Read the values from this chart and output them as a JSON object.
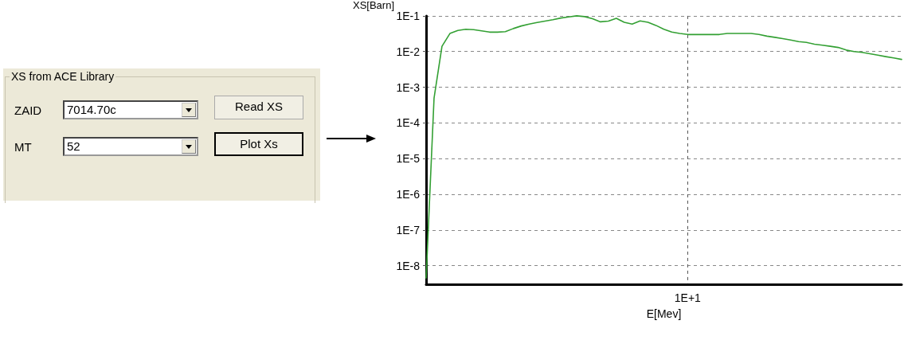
{
  "chart_data": [
    {
      "type": "other",
      "title": "XS from ACE Library",
      "annotations": [
        "ZAID",
        "7014.70c",
        "Read XS",
        "MT",
        "52",
        "Plot Xs"
      ]
    },
    {
      "type": "line",
      "xlabel": "E[Mev]",
      "ylabel": "XS[Barn]",
      "categories": [
        null,
        null,
        null,
        null,
        null,
        null,
        null,
        null,
        null,
        null,
        null,
        null,
        null,
        null,
        null,
        null,
        null,
        null,
        null,
        null,
        null,
        null,
        null,
        null,
        null,
        null,
        null,
        null,
        null,
        null,
        null,
        null,
        null,
        "1E+1",
        null,
        null,
        null,
        null,
        null,
        null,
        null,
        null,
        null,
        null,
        null,
        null,
        null,
        null,
        null,
        null,
        null,
        null,
        null,
        null,
        null,
        null,
        null,
        null,
        null,
        null,
        null
      ],
      "series": [
        {
          "color": "#33a033",
          "values": [
            4.5e-09,
            0.0005,
            0.014,
            0.032,
            0.039,
            0.042,
            0.041,
            0.038,
            0.035,
            0.035,
            0.036,
            0.044,
            0.052,
            0.059,
            0.065,
            0.071,
            0.078,
            0.087,
            0.093,
            0.1,
            0.095,
            0.083,
            0.068,
            0.071,
            0.085,
            0.066,
            0.059,
            0.072,
            0.066,
            0.054,
            0.042,
            0.035,
            0.032,
            0.03,
            0.03,
            0.03,
            0.03,
            0.03,
            0.032,
            0.032,
            0.032,
            0.032,
            0.03,
            0.027,
            0.025,
            0.023,
            0.021,
            0.019,
            0.018,
            0.016,
            0.015,
            0.014,
            0.013,
            0.011,
            0.01,
            0.0095,
            0.0087,
            0.0079,
            0.0072,
            0.0066,
            0.006
          ]
        }
      ],
      "log": "y",
      "ylim": [
        3e-09,
        0.1
      ],
      "yticks": [
        {
          "value": 0.1,
          "label": "1E-1"
        },
        {
          "value": 0.01,
          "label": "1E-2"
        },
        {
          "value": 0.001,
          "label": "1E-3"
        },
        {
          "value": 0.0001,
          "label": "1E-4"
        },
        {
          "value": 1e-05,
          "label": "1E-5"
        },
        {
          "value": 1e-06,
          "label": "1E-6"
        },
        {
          "value": 1e-07,
          "label": "1E-7"
        },
        {
          "value": 1e-08,
          "label": "1E-8"
        }
      ],
      "grid": true,
      "marker": "none",
      "line_style": "solid"
    }
  ]
}
